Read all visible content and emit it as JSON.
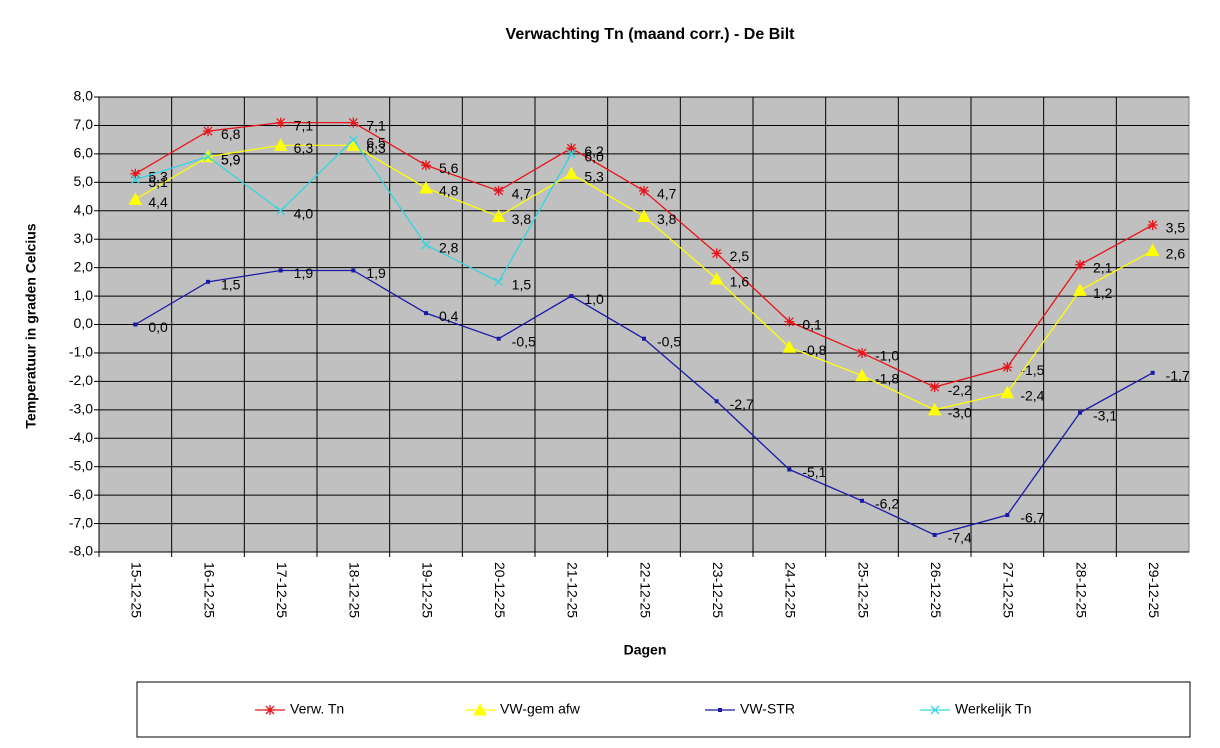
{
  "chart_data": {
    "type": "line",
    "title": "Verwachting Tn (maand corr.) - De Bilt",
    "x_label": "Dagen",
    "y_label": "Temperatuur in graden Celcius",
    "categories": [
      "15-12-25",
      "16-12-25",
      "17-12-25",
      "18-12-25",
      "19-12-25",
      "20-12-25",
      "21-12-25",
      "22-12-25",
      "23-12-25",
      "24-12-25",
      "25-12-25",
      "26-12-25",
      "27-12-25",
      "28-12-25",
      "29-12-25"
    ],
    "ylim": [
      -8,
      8
    ],
    "yticks": [
      {
        "value": -8,
        "label": "-8,0"
      },
      {
        "value": -7,
        "label": "-7,0"
      },
      {
        "value": -6,
        "label": "-6,0"
      },
      {
        "value": -5,
        "label": "-5,0"
      },
      {
        "value": -4,
        "label": "-4,0"
      },
      {
        "value": -3,
        "label": "-3,0"
      },
      {
        "value": -2,
        "label": "-2,0"
      },
      {
        "value": -1,
        "label": "-1,0"
      },
      {
        "value": 0,
        "label": "0,0"
      },
      {
        "value": 1,
        "label": "1,0"
      },
      {
        "value": 2,
        "label": "2,0"
      },
      {
        "value": 3,
        "label": "3,0"
      },
      {
        "value": 4,
        "label": "4,0"
      },
      {
        "value": 5,
        "label": "5,0"
      },
      {
        "value": 6,
        "label": "6,0"
      },
      {
        "value": 7,
        "label": "7,0"
      },
      {
        "value": 8,
        "label": "8,0"
      }
    ],
    "grid": true,
    "legend": "bottom",
    "series": [
      {
        "name": "Verw. Tn",
        "color": "#e8141b",
        "marker": "asterisk",
        "values": [
          5.3,
          6.8,
          7.1,
          7.1,
          5.6,
          4.7,
          6.2,
          4.7,
          2.5,
          0.1,
          -1.0,
          -2.2,
          -1.5,
          2.1,
          3.5
        ],
        "value_labels": [
          "5,3",
          "6,8",
          "7,1",
          "7,1",
          "5,6",
          "4,7",
          "6,2",
          "4,7",
          "2,5",
          "0,1",
          "-1,0",
          "-2,2",
          "-1,5",
          "2,1",
          "3,5"
        ]
      },
      {
        "name": "VW-gem afw",
        "color": "#ffff00",
        "marker": "triangle",
        "values": [
          4.4,
          5.9,
          6.3,
          6.3,
          4.8,
          3.8,
          5.3,
          3.8,
          1.6,
          -0.8,
          -1.8,
          -3.0,
          -2.4,
          1.2,
          2.6
        ],
        "value_labels": [
          "4,4",
          "5,9",
          "6,3",
          "6,3",
          "4,8",
          "3,8",
          "5,3",
          "3,8",
          "1,6",
          "-0,8",
          "-1,8",
          "-3,0",
          "-2,4",
          "1,2",
          "2,6"
        ]
      },
      {
        "name": "VW-STR",
        "color": "#1a1aa8",
        "marker": "square",
        "values": [
          0.0,
          1.5,
          1.9,
          1.9,
          0.4,
          -0.5,
          1.0,
          -0.5,
          -2.7,
          -5.1,
          -6.2,
          -7.4,
          -6.7,
          -3.1,
          -1.7
        ],
        "value_labels": [
          "0,0",
          "1,5",
          "1,9",
          "1,9",
          "0,4",
          "-0,5",
          "1,0",
          "-0,5",
          "-2,7",
          "-5,1",
          "-6,2",
          "-7,4",
          "-6,7",
          "-3,1",
          "-1,7"
        ]
      },
      {
        "name": "Werkelijk Tn",
        "color": "#33d6e0",
        "marker": "x",
        "values": [
          5.1,
          5.9,
          4.0,
          6.5,
          2.8,
          1.5,
          6.0,
          null,
          null,
          null,
          null,
          null,
          null,
          null,
          null
        ],
        "value_labels": [
          "5,1",
          "5,9",
          "4,0",
          "6,5",
          "2,8",
          "1,5",
          "6,0",
          null,
          null,
          null,
          null,
          null,
          null,
          null,
          null
        ]
      }
    ]
  }
}
